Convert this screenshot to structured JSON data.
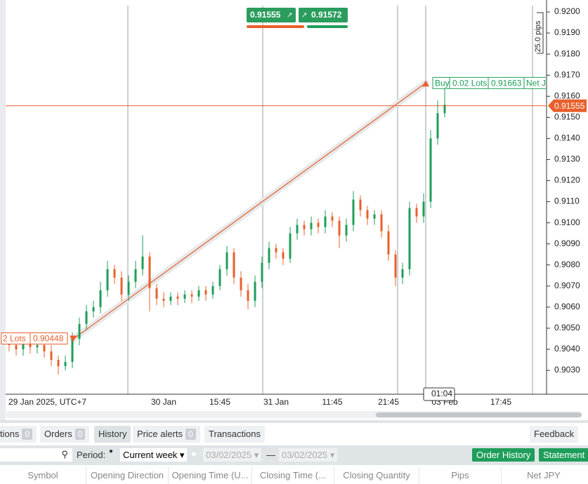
{
  "chart_data": {
    "type": "candlestick",
    "categories": [
      "29 Jan 2025, UTC+7",
      null,
      null,
      null,
      null,
      null,
      null,
      null,
      null,
      null,
      null,
      null,
      null,
      null,
      null,
      null,
      null,
      null,
      null,
      null,
      null,
      null,
      "30 Jan",
      null,
      null,
      null,
      null,
      null,
      null,
      null,
      "15:45",
      null,
      null,
      null,
      null,
      null,
      null,
      null,
      "31 Jan",
      null,
      null,
      null,
      null,
      null,
      null,
      null,
      "11:45",
      null,
      null,
      null,
      null,
      null,
      null,
      null,
      "21:45",
      null,
      null,
      null,
      null,
      null,
      null,
      null,
      "03 Feb",
      null,
      null,
      null,
      null,
      null,
      null,
      null,
      "17:45",
      null,
      null,
      null,
      null
    ],
    "open": [
      0.9044,
      0.9042,
      0.904,
      0.9043,
      0.9041,
      0.9042,
      0.9039,
      0.9035,
      0.9032,
      0.9034,
      0.9045,
      0.9052,
      0.9058,
      0.906,
      0.9068,
      0.9078,
      0.9074,
      0.9066,
      0.9072,
      0.9078,
      0.9084,
      0.9069,
      0.9064,
      0.9063,
      0.9065,
      0.9064,
      0.9066,
      0.9065,
      0.9068,
      0.9066,
      0.907,
      0.9078,
      0.9086,
      0.9074,
      0.9068,
      0.9063,
      0.9072,
      0.9081,
      0.9088,
      0.9086,
      0.9083,
      0.9095,
      0.9099,
      0.9097,
      0.91,
      0.9098,
      0.9103,
      0.9101,
      0.9094,
      0.9099,
      0.9111,
      0.9106,
      0.9102,
      0.9104,
      0.9096,
      0.9085,
      0.9074,
      0.9078,
      0.9107,
      0.9103,
      0.911,
      0.914,
      0.9152,
      null,
      null,
      null,
      null,
      null,
      null,
      null,
      null,
      null,
      null,
      null,
      null
    ],
    "high": [
      0.9046,
      0.9045,
      0.9046,
      0.9045,
      0.9045,
      0.9044,
      0.9042,
      0.9037,
      0.9037,
      0.9048,
      0.9055,
      0.9061,
      0.9063,
      0.9072,
      0.9082,
      0.908,
      0.9077,
      0.9075,
      0.9082,
      0.9094,
      0.9086,
      0.9071,
      0.9067,
      0.9067,
      0.9067,
      0.9068,
      0.9068,
      0.907,
      0.907,
      0.9072,
      0.908,
      0.9089,
      0.9088,
      0.9077,
      0.9071,
      0.9075,
      0.9084,
      0.9091,
      0.909,
      0.9088,
      0.9098,
      0.9102,
      0.9101,
      0.9103,
      0.9102,
      0.9106,
      0.9105,
      0.9103,
      0.9102,
      0.9115,
      0.9113,
      0.9108,
      0.9106,
      0.9106,
      0.9099,
      0.9087,
      0.9081,
      0.911,
      0.9109,
      0.9114,
      0.9144,
      0.9158,
      0.9166,
      null,
      null,
      null,
      null,
      null,
      null,
      null,
      null,
      null,
      null,
      null,
      null
    ],
    "low": [
      0.9039,
      0.9037,
      0.9037,
      0.9038,
      0.9038,
      0.9036,
      0.9032,
      0.9028,
      0.903,
      0.9031,
      0.9042,
      0.9049,
      0.9055,
      0.9057,
      0.9065,
      0.9071,
      0.9063,
      0.9063,
      0.9069,
      0.9075,
      0.9058,
      0.9061,
      0.906,
      0.9061,
      0.9061,
      0.9062,
      0.9062,
      0.9063,
      0.9063,
      0.9064,
      0.9068,
      0.9075,
      0.9071,
      0.9065,
      0.9059,
      0.906,
      0.9069,
      0.9078,
      0.9083,
      0.908,
      0.9081,
      0.9092,
      0.9094,
      0.9094,
      0.9095,
      0.9095,
      0.9098,
      0.9088,
      0.9091,
      0.9096,
      0.9103,
      0.9099,
      0.9099,
      0.9093,
      0.9082,
      0.907,
      0.9071,
      0.9075,
      0.91,
      0.91,
      0.9107,
      0.9137,
      0.915,
      null,
      null,
      null,
      null,
      null,
      null,
      null,
      null,
      null,
      null,
      null,
      null
    ],
    "close": [
      0.9042,
      0.904,
      0.9043,
      0.9041,
      0.9042,
      0.9039,
      0.9035,
      0.9032,
      0.9034,
      0.9045,
      0.9052,
      0.9058,
      0.906,
      0.9068,
      0.9078,
      0.9074,
      0.9066,
      0.9072,
      0.9078,
      0.9084,
      0.9069,
      0.9064,
      0.9063,
      0.9065,
      0.9064,
      0.9066,
      0.9065,
      0.9068,
      0.9066,
      0.907,
      0.9078,
      0.9086,
      0.9074,
      0.9068,
      0.9063,
      0.9072,
      0.9081,
      0.9088,
      0.9086,
      0.9083,
      0.9095,
      0.9099,
      0.9097,
      0.91,
      0.9098,
      0.9103,
      0.9101,
      0.9094,
      0.9099,
      0.9111,
      0.9106,
      0.9102,
      0.9104,
      0.9096,
      0.9085,
      0.9074,
      0.9078,
      0.9107,
      0.9103,
      0.911,
      0.914,
      0.9152,
      0.9156,
      null,
      null,
      null,
      null,
      null,
      null,
      null,
      null,
      null,
      null,
      null,
      null
    ],
    "up_color": "#1e9e5a",
    "down_color": "#e8602c",
    "ylim": [
      0.90187,
      0.9203
    ],
    "yticks": [
      {
        "value": 0.903,
        "label": "0.9030"
      },
      {
        "value": 0.904,
        "label": "0.9040"
      },
      {
        "value": 0.905,
        "label": "0.9050"
      },
      {
        "value": 0.906,
        "label": "0.9060"
      },
      {
        "value": 0.907,
        "label": "0.9070"
      },
      {
        "value": 0.908,
        "label": "0.9080"
      },
      {
        "value": 0.909,
        "label": "0.9090"
      },
      {
        "value": 0.91,
        "label": "0.9100"
      },
      {
        "value": 0.911,
        "label": "0.9110"
      },
      {
        "value": 0.912,
        "label": "0.9120"
      },
      {
        "value": 0.913,
        "label": "0.9130"
      },
      {
        "value": 0.914,
        "label": "0.9140"
      },
      {
        "value": 0.915,
        "label": "0.9150"
      },
      {
        "value": 0.916,
        "label": "0.9160"
      },
      {
        "value": 0.917,
        "label": "0.9170"
      },
      {
        "value": 0.918,
        "label": "0.9180"
      },
      {
        "value": 0.919,
        "label": "0.9190"
      },
      {
        "value": 0.92,
        "label": "0.9200"
      }
    ],
    "current_price": 0.91555,
    "bid": 0.91555,
    "ask": 0.91572,
    "pips_label": "25.0 pips",
    "trade_open": {
      "lots": "2 Lots",
      "price": 0.90448
    },
    "trade_close": {
      "side": "Buy",
      "lots": "0.02 Lots",
      "price": 0.91663,
      "currency": "Net JPY"
    },
    "cursor_time": "01:04"
  },
  "panel": {
    "tabs": [
      {
        "label": "tions",
        "count": 0
      },
      {
        "label": "Orders",
        "count": 0
      },
      {
        "label": "History"
      },
      {
        "label": "Price alerts",
        "count": 0
      },
      {
        "label": "Transactions"
      }
    ],
    "feedback": "Feedback",
    "period_label": "Period:",
    "period_value": "Current week",
    "date_from": "03/02/2025",
    "date_sep": "—",
    "date_to": "03/02/2025",
    "buttons": [
      "Order History",
      "Statement"
    ],
    "columns": [
      "Symbol",
      "Opening Direction",
      "Opening Time (U...",
      "Closing Time (...",
      "Closing Quantity",
      "Pips",
      "Net JPY"
    ]
  }
}
